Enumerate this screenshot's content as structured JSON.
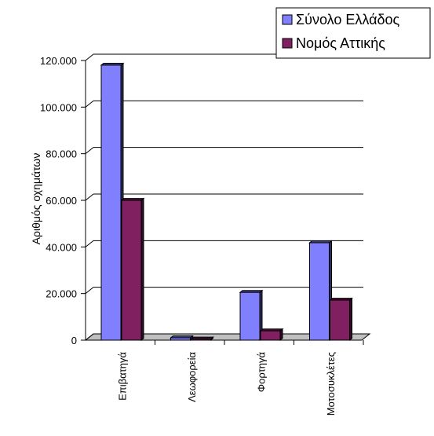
{
  "chart_data": {
    "type": "bar",
    "ylabel": "Αριθμός οχημάτων",
    "categories": [
      "Επιβατηγά",
      "Λεωφορεία",
      "Φορτηγά",
      "Μοτοσυκλέτες"
    ],
    "series": [
      {
        "name": "Σύνολο Ελλάδος",
        "color": "#8080ff",
        "values": [
          118000,
          1000,
          20500,
          41800
        ]
      },
      {
        "name": "Νομός Αττικής",
        "color": "#802060",
        "values": [
          60000,
          500,
          4000,
          17200
        ]
      }
    ],
    "y_ticks": [
      "0",
      "20.000",
      "40.000",
      "60.000",
      "80.000",
      "100.000",
      "120.000"
    ],
    "ylim": [
      0,
      120000
    ],
    "grid": true,
    "legend_position": "top-right",
    "style": "3d"
  }
}
